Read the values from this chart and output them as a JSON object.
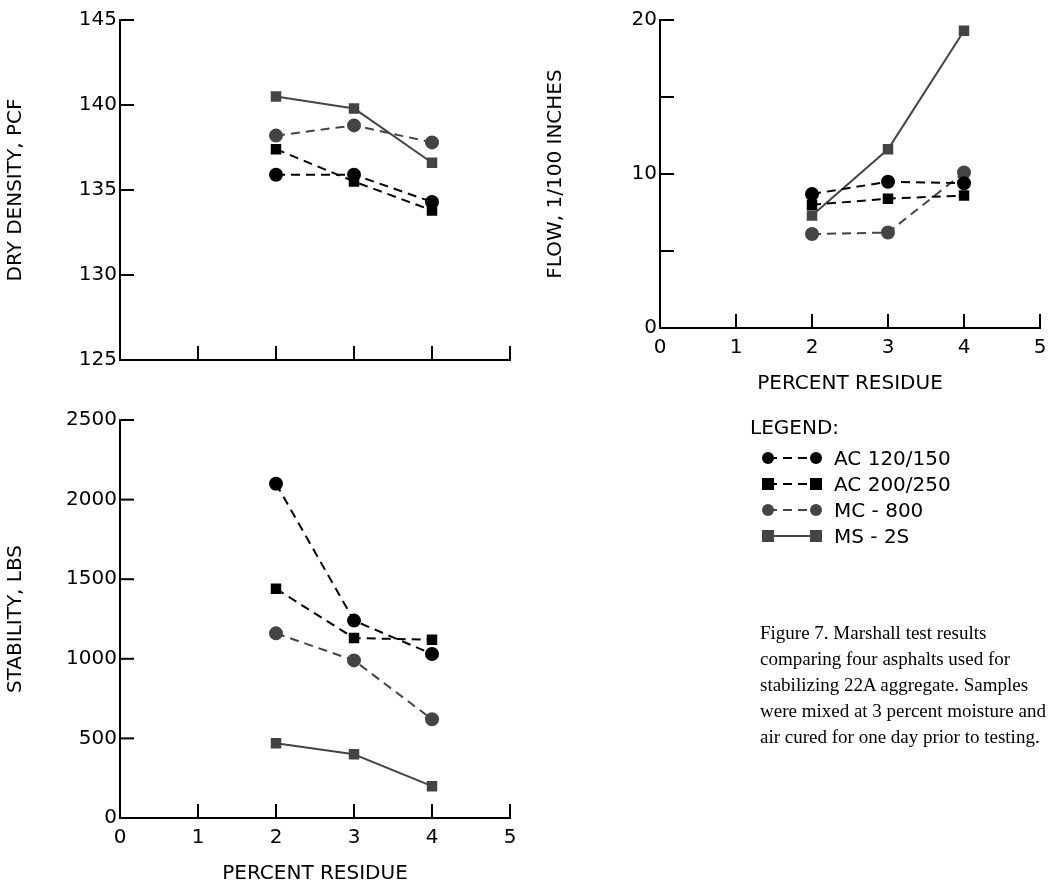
{
  "chart_data": [
    {
      "type": "line",
      "ylabel": "DRY DENSITY, PCF",
      "x": [
        2,
        3,
        4
      ],
      "xlim": [
        0,
        5
      ],
      "xticks": [
        0,
        1,
        2,
        3,
        4,
        5
      ],
      "ylim": [
        125,
        145
      ],
      "yticks": [
        125,
        130,
        135,
        140,
        145
      ],
      "tick_labels": "y",
      "grid": false,
      "legend": false,
      "series": [
        {
          "color": "#000000",
          "marker": "circle",
          "line_style": "dashed",
          "values": [
            135.9,
            135.9,
            134.3
          ]
        },
        {
          "color": "#000000",
          "marker": "square",
          "line_style": "dashed",
          "values": [
            137.4,
            135.5,
            133.8
          ]
        },
        {
          "color": "#444444",
          "marker": "circle",
          "line_style": "dashed",
          "values": [
            138.2,
            138.8,
            137.8
          ]
        },
        {
          "color": "#444444",
          "marker": "square",
          "line_style": "solid",
          "values": [
            140.5,
            139.8,
            136.6
          ]
        }
      ]
    },
    {
      "type": "line",
      "ylabel": "FLOW, 1/100 INCHES",
      "xlabel": "PERCENT RESIDUE",
      "x": [
        2,
        3,
        4
      ],
      "xlim": [
        0,
        5
      ],
      "xticks": [
        0,
        1,
        2,
        3,
        4,
        5
      ],
      "ylim": [
        0,
        20
      ],
      "yticks": [
        {
          "value": 0,
          "label": "0"
        },
        {
          "value": 5,
          "label": null
        },
        {
          "value": 10,
          "label": "10"
        },
        {
          "value": 15,
          "label": null
        },
        {
          "value": 20,
          "label": "20"
        }
      ],
      "grid": false,
      "legend": "bottom",
      "legend_title": "LEGEND:",
      "annotations": [
        "Figure 7.  Marshall test results comparing four asphalts used for stabilizing 22A aggregate. Samples were mixed at 3 percent moisture and air cured for one day prior to testing."
      ],
      "series": [
        {
          "name": "AC 120/150",
          "color": "#000000",
          "marker": "circle",
          "line_style": "dashed",
          "values": [
            8.7,
            9.5,
            9.4
          ]
        },
        {
          "name": "AC 200/250",
          "color": "#000000",
          "marker": "square",
          "line_style": "dashed",
          "values": [
            8.0,
            8.4,
            8.6
          ]
        },
        {
          "name": "MC - 800",
          "color": "#444444",
          "marker": "circle",
          "line_style": "dashed",
          "values": [
            6.1,
            6.2,
            10.1
          ]
        },
        {
          "name": "MS - 2S",
          "color": "#444444",
          "marker": "square",
          "line_style": "solid",
          "values": [
            7.3,
            11.6,
            19.3
          ]
        }
      ]
    },
    {
      "type": "line",
      "ylabel": "STABILITY, LBS",
      "xlabel": "PERCENT RESIDUE",
      "x": [
        2,
        3,
        4
      ],
      "xlim": [
        0,
        5
      ],
      "xticks": [
        0,
        1,
        2,
        3,
        4,
        5
      ],
      "ylim": [
        0,
        2500
      ],
      "yticks": [
        0,
        500,
        1000,
        1500,
        2000,
        2500
      ],
      "grid": false,
      "legend": false,
      "series": [
        {
          "color": "#000000",
          "marker": "circle",
          "line_style": "dashed",
          "values": [
            2100,
            1240,
            1030
          ]
        },
        {
          "color": "#000000",
          "marker": "square",
          "line_style": "dashed",
          "values": [
            1440,
            1130,
            1120
          ]
        },
        {
          "color": "#444444",
          "marker": "circle",
          "line_style": "dashed",
          "values": [
            1160,
            990,
            620
          ]
        },
        {
          "color": "#444444",
          "marker": "square",
          "line_style": "solid",
          "values": [
            470,
            400,
            200
          ]
        }
      ]
    }
  ]
}
